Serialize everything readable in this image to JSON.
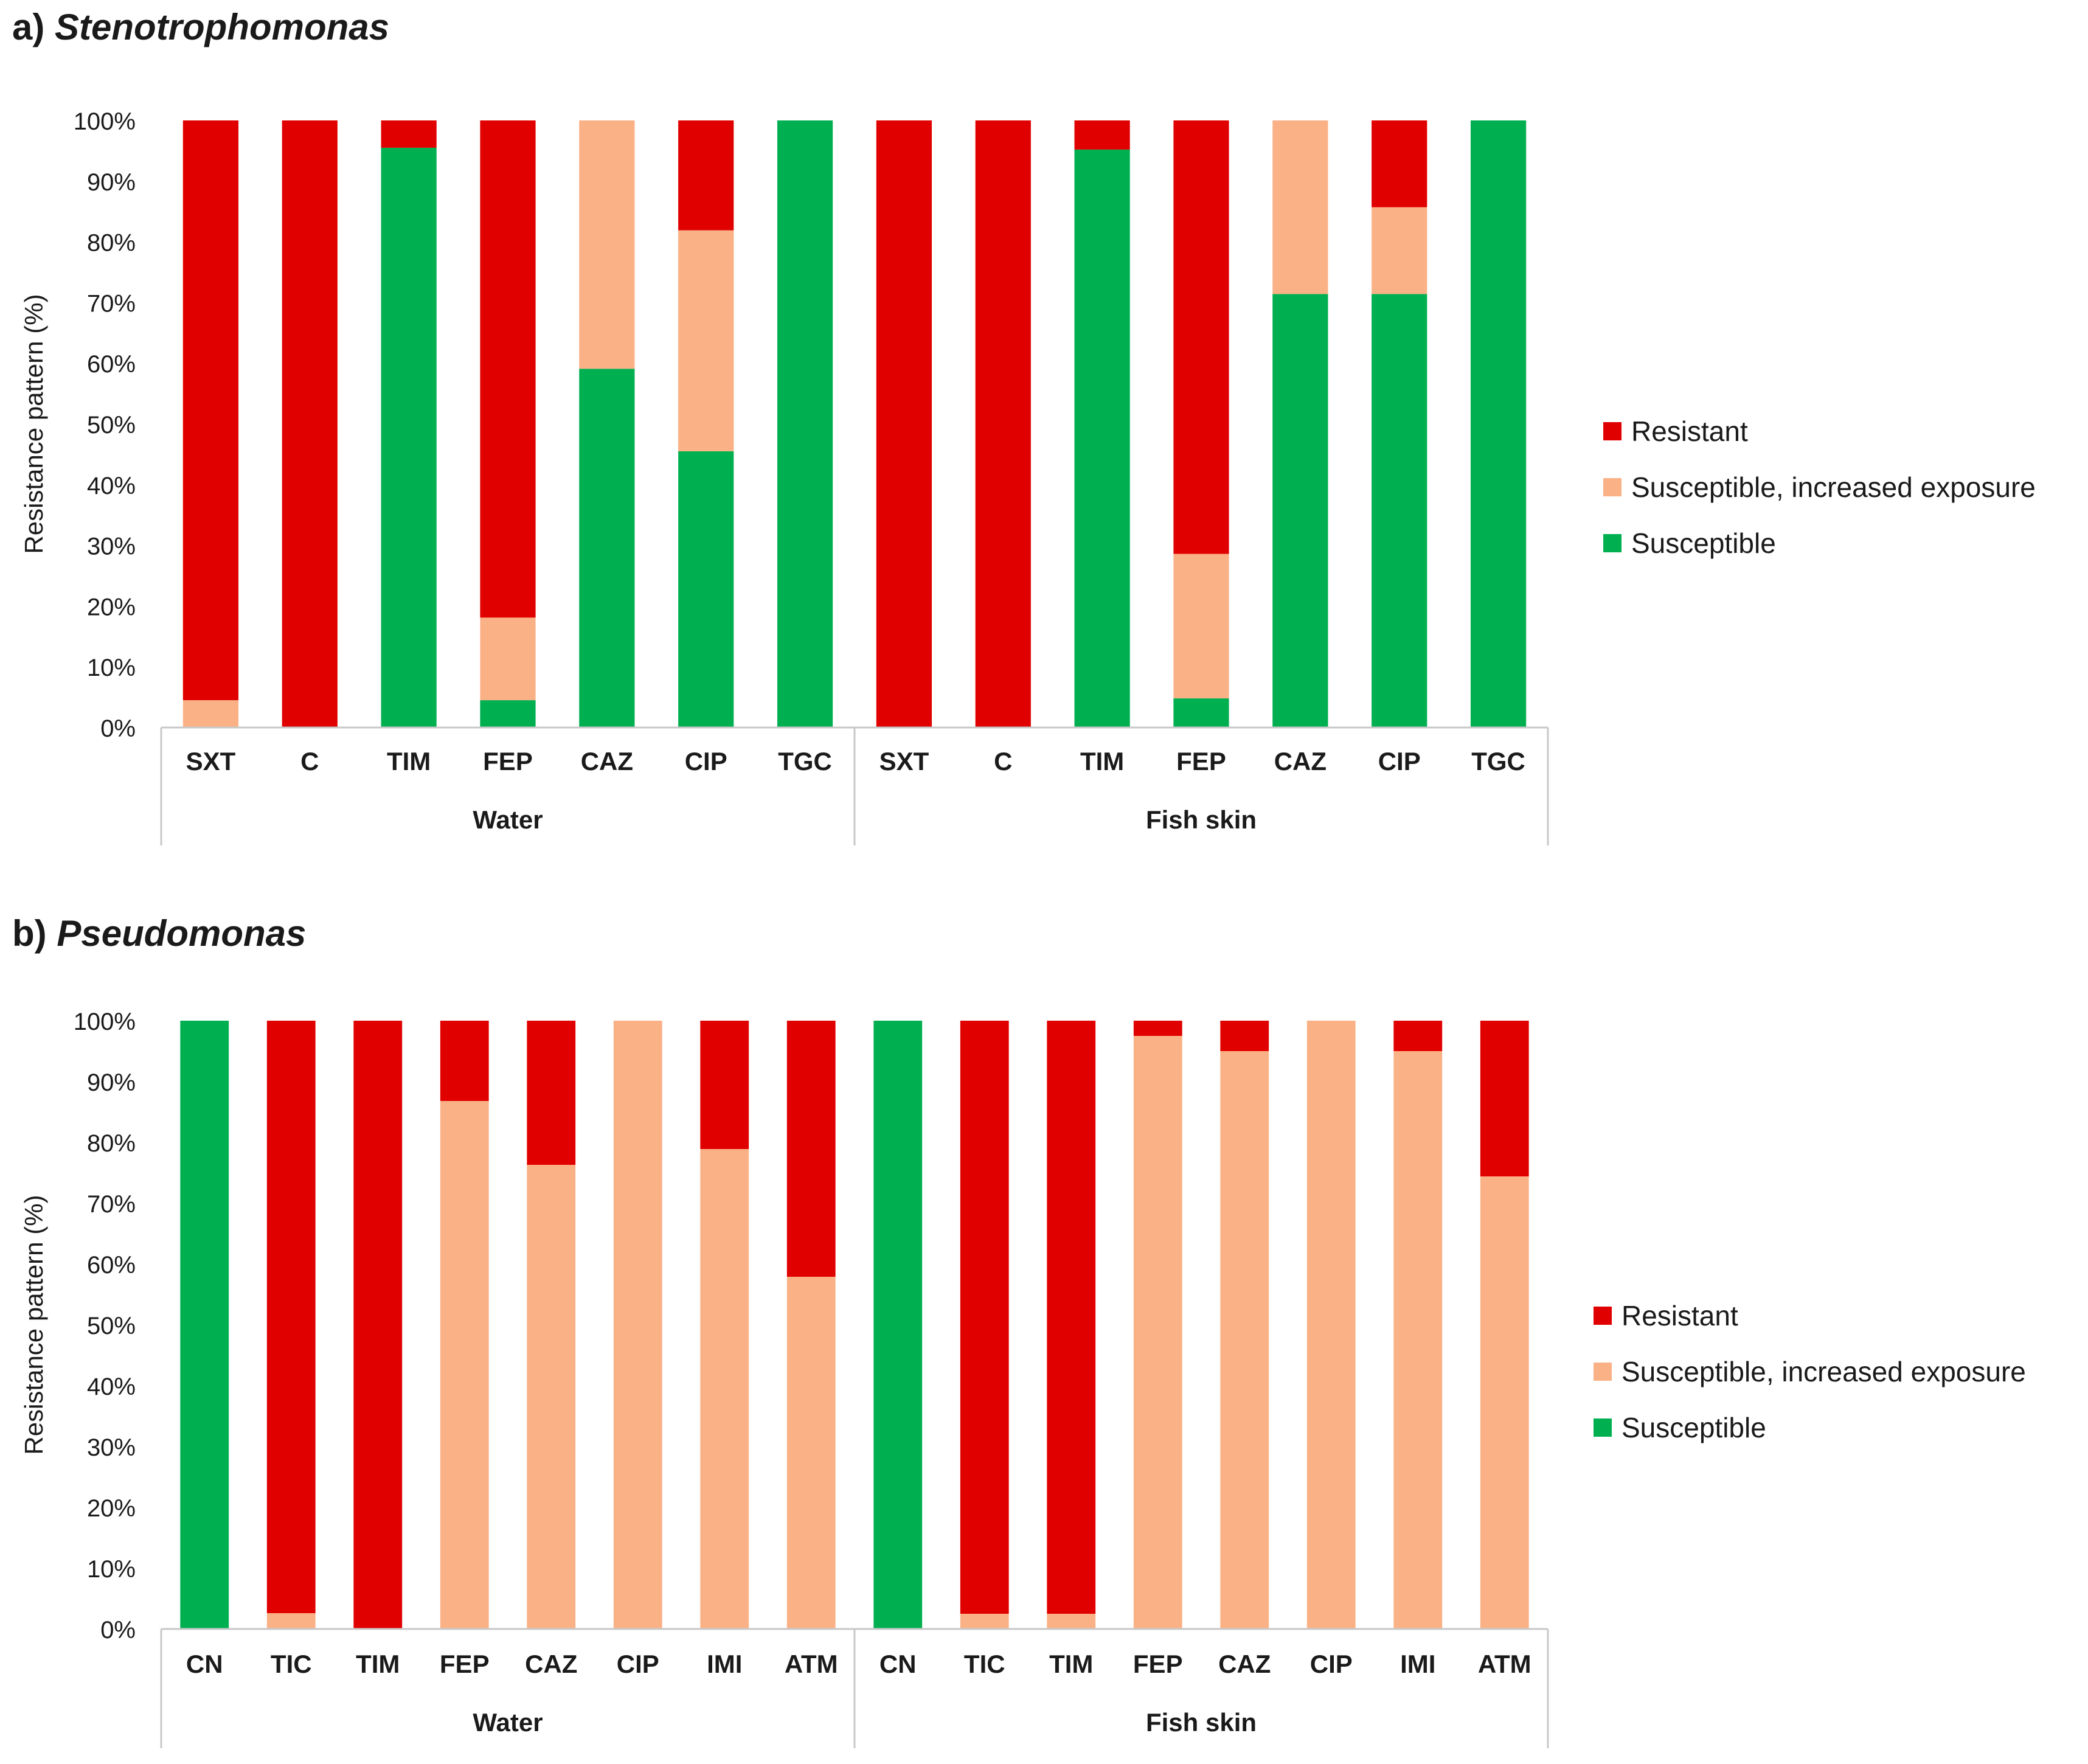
{
  "colors": {
    "resistant": "#E00000",
    "increased": "#FBB186",
    "susceptible": "#00B050",
    "axis": "#C8C8C8",
    "text": "#1a1a1a"
  },
  "chart_data": [
    {
      "type": "bar",
      "stacked": true,
      "panel_label": "a)",
      "title": "Stenotrophomonas",
      "ylabel": "Resistance pattern (%)",
      "ylim": [
        0,
        100
      ],
      "yticks": [
        "0%",
        "10%",
        "20%",
        "30%",
        "40%",
        "50%",
        "60%",
        "70%",
        "80%",
        "90%",
        "100%"
      ],
      "groups": [
        {
          "name": "Water",
          "categories": [
            "SXT",
            "C",
            "TIM",
            "FEP",
            "CAZ",
            "CIP",
            "TGC"
          ]
        },
        {
          "name": "Fish skin",
          "categories": [
            "SXT",
            "C",
            "TIM",
            "FEP",
            "CAZ",
            "CIP",
            "TGC"
          ]
        }
      ],
      "series": [
        {
          "name": "Susceptible",
          "color": "#00B050",
          "values": [
            0,
            0,
            95.5,
            4.5,
            59.1,
            45.5,
            100,
            0,
            0,
            95.2,
            4.8,
            71.4,
            71.4,
            100
          ]
        },
        {
          "name": "Susceptible, increased exposure",
          "color": "#FBB186",
          "values": [
            4.5,
            0,
            0,
            13.6,
            40.9,
            36.4,
            0,
            0,
            0,
            0,
            23.8,
            28.6,
            14.3,
            0
          ]
        },
        {
          "name": "Resistant",
          "color": "#E00000",
          "values": [
            95.5,
            100,
            4.5,
            81.9,
            0,
            18.1,
            0,
            100,
            100,
            4.8,
            71.4,
            0,
            14.3,
            0
          ]
        }
      ],
      "legend": [
        "Resistant",
        "Susceptible, increased exposure",
        "Susceptible"
      ],
      "legend_position": "right"
    },
    {
      "type": "bar",
      "stacked": true,
      "panel_label": "b)",
      "title": "Pseudomonas",
      "ylabel": "Resistance pattern (%)",
      "ylim": [
        0,
        100
      ],
      "yticks": [
        "0%",
        "10%",
        "20%",
        "30%",
        "40%",
        "50%",
        "60%",
        "70%",
        "80%",
        "90%",
        "100%"
      ],
      "groups": [
        {
          "name": "Water",
          "categories": [
            "CN",
            "TIC",
            "TIM",
            "FEP",
            "CAZ",
            "CIP",
            "IMI",
            "ATM"
          ]
        },
        {
          "name": "Fish skin",
          "categories": [
            "CN",
            "TIC",
            "TIM",
            "FEP",
            "CAZ",
            "CIP",
            "IMI",
            "ATM"
          ]
        }
      ],
      "series": [
        {
          "name": "Susceptible",
          "color": "#00B050",
          "values": [
            100,
            0,
            0,
            0,
            0,
            0,
            0,
            0,
            100,
            0,
            0,
            0,
            0,
            0,
            0,
            0
          ]
        },
        {
          "name": "Susceptible, increased exposure",
          "color": "#FBB186",
          "values": [
            0,
            2.6,
            0,
            86.8,
            76.3,
            100,
            78.9,
            57.9,
            0,
            2.5,
            2.5,
            97.5,
            95,
            100,
            95,
            74.4
          ]
        },
        {
          "name": "Resistant",
          "color": "#E00000",
          "values": [
            0,
            97.4,
            100,
            13.2,
            23.7,
            0,
            21.1,
            42.1,
            0,
            97.5,
            97.5,
            2.5,
            5,
            0,
            5,
            25.6
          ]
        }
      ],
      "legend": [
        "Resistant",
        "Susceptible, increased exposure",
        "Susceptible"
      ],
      "legend_position": "right"
    }
  ]
}
